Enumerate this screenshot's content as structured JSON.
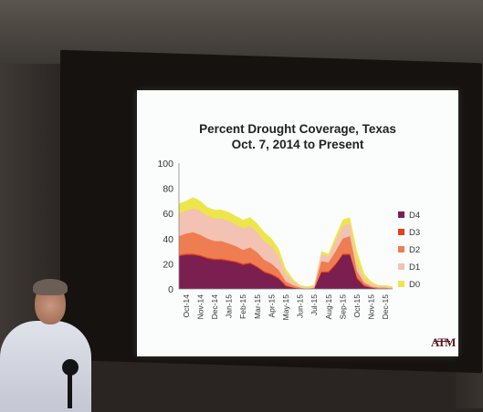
{
  "slide": {
    "title_line1": "Percent Drought Coverage, Texas",
    "title_line2": "Oct. 7, 2014 to Present",
    "logo_text": "ATM"
  },
  "chart_data": {
    "type": "area",
    "title": "Percent Drought Coverage, Texas Oct. 7, 2014 to Present",
    "ylim": [
      0,
      100
    ],
    "yticks": [
      0,
      20,
      40,
      60,
      80,
      100
    ],
    "xtick_labels": [
      "Oct-14",
      "Nov-14",
      "Dec-14",
      "Jan-15",
      "Feb-15",
      "Mar-15",
      "Apr-15",
      "May-15",
      "Jun-15",
      "Jul-15",
      "Aug-15",
      "Sep-15",
      "Oct-15",
      "Nov-15",
      "Dec-15"
    ],
    "grid": false,
    "legend_position": "right",
    "colors": {
      "D4": "#7a1f4f",
      "D3": "#e2401e",
      "D2": "#ef7d52",
      "D1": "#f3c2b3",
      "D0": "#ece64a"
    },
    "x": [
      0,
      0.5,
      1,
      1.5,
      2,
      2.5,
      3,
      3.5,
      4,
      4.5,
      5,
      5.5,
      6,
      6.5,
      7,
      7.5,
      8,
      8.5,
      9,
      9.5,
      10,
      10.5,
      11,
      11.5,
      12,
      12.5,
      13,
      13.5,
      14,
      14.5,
      15
    ],
    "series": [
      {
        "name": "D0",
        "values": [
          68,
          70,
          73,
          70,
          65,
          63,
          63,
          61,
          58,
          55,
          57,
          52,
          45,
          40,
          32,
          16,
          8,
          3,
          2,
          3,
          30,
          28,
          42,
          55,
          57,
          30,
          12,
          6,
          3,
          3,
          2
        ]
      },
      {
        "name": "D1",
        "values": [
          60,
          62,
          64,
          62,
          58,
          56,
          56,
          54,
          51,
          48,
          50,
          45,
          38,
          34,
          26,
          12,
          6,
          2,
          1,
          2,
          28,
          26,
          38,
          50,
          52,
          20,
          8,
          4,
          2,
          2,
          1
        ]
      },
      {
        "name": "D2",
        "values": [
          42,
          44,
          45,
          43,
          40,
          38,
          38,
          36,
          34,
          31,
          33,
          29,
          23,
          20,
          15,
          6,
          3,
          1,
          0,
          1,
          22,
          21,
          30,
          40,
          42,
          14,
          5,
          2,
          1,
          1,
          0
        ]
      },
      {
        "name": "D3",
        "values": [
          27,
          28,
          28,
          27,
          25,
          24,
          24,
          23,
          22,
          20,
          21,
          18,
          14,
          12,
          9,
          3,
          1,
          0,
          0,
          0,
          14,
          14,
          20,
          28,
          28,
          9,
          3,
          1,
          0,
          0,
          0
        ]
      },
      {
        "name": "D4",
        "values": [
          26,
          27,
          27,
          26,
          24,
          23,
          23,
          22,
          21,
          19,
          20,
          17,
          13,
          11,
          8,
          2,
          1,
          0,
          0,
          0,
          13,
          13,
          19,
          27,
          27,
          8,
          2,
          1,
          0,
          0,
          0
        ]
      }
    ]
  }
}
